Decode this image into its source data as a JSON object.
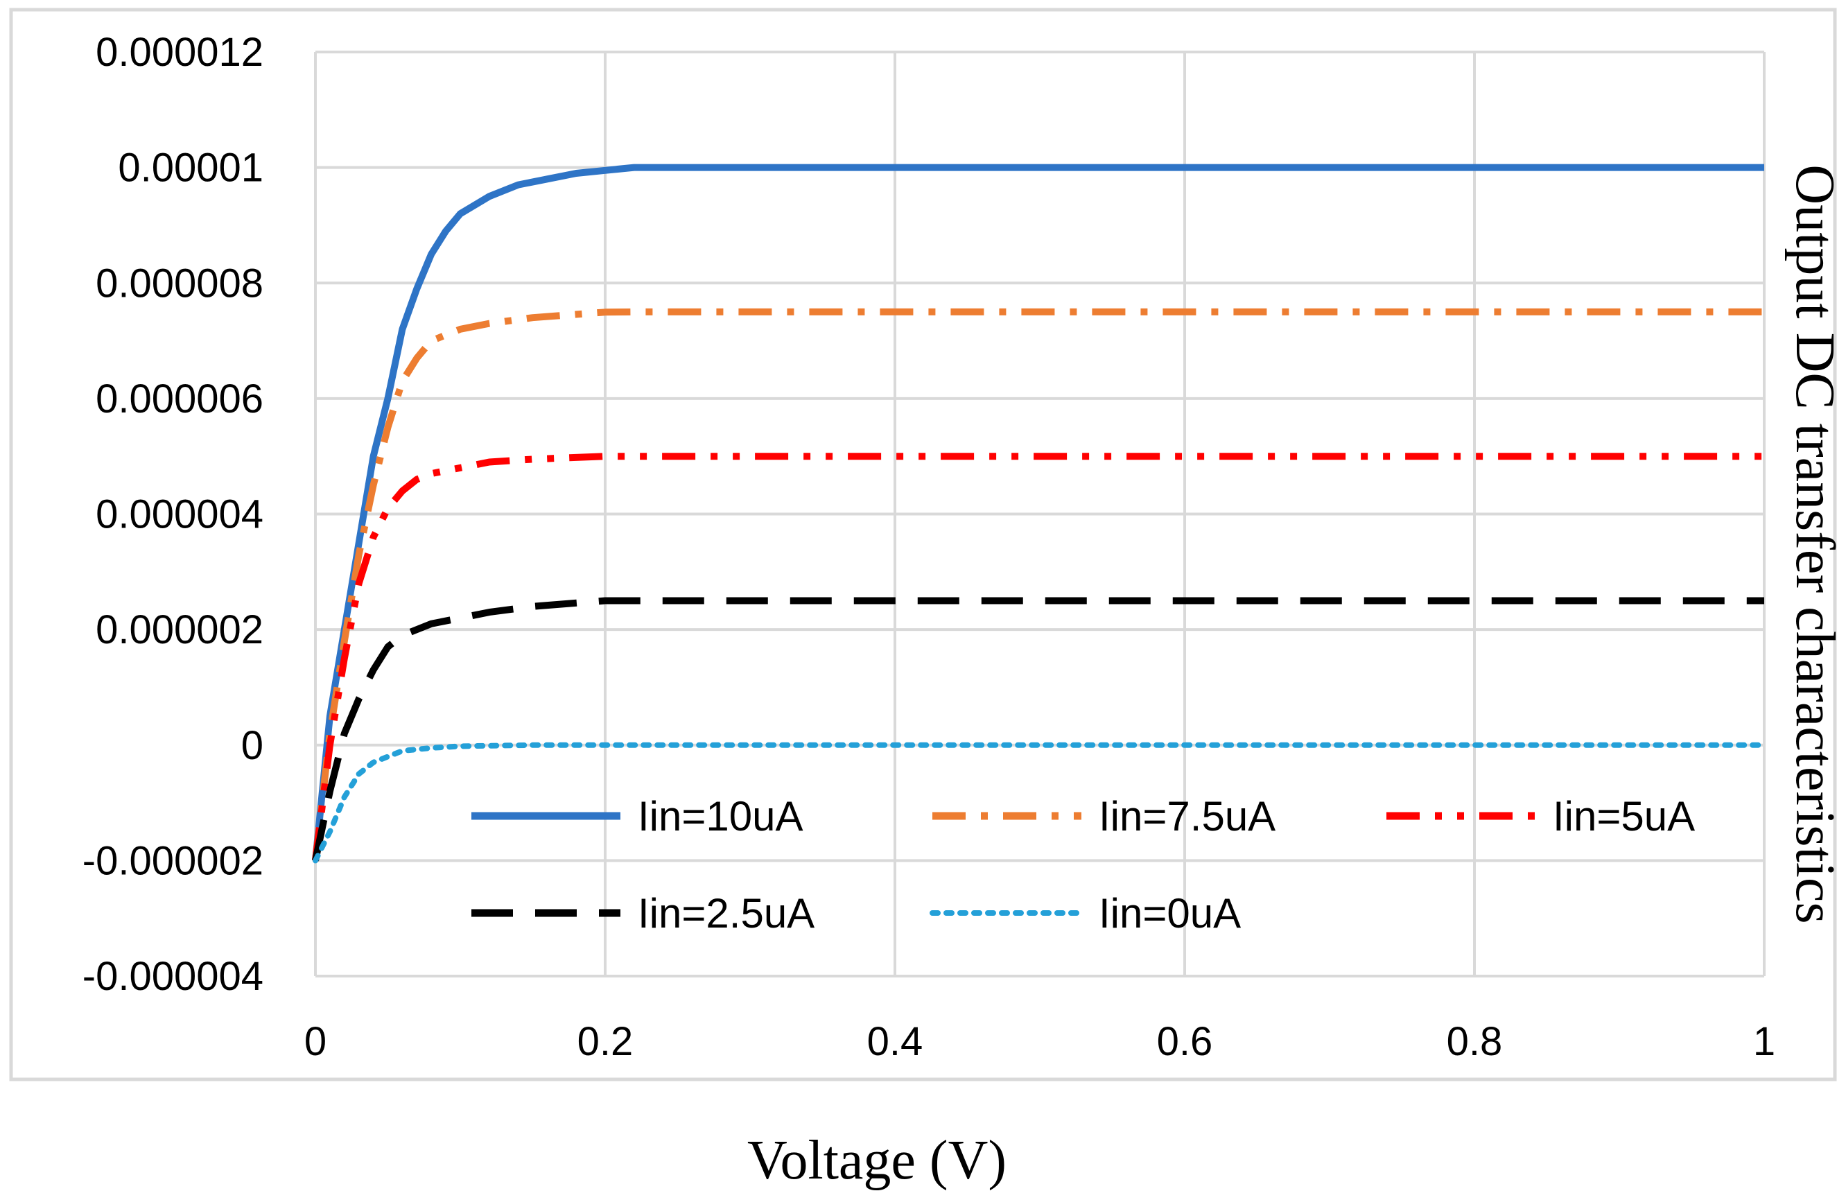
{
  "chart_data": {
    "type": "line",
    "title": "",
    "xlabel": "Voltage (V)",
    "ylabel": "Output DC transfer characteristics",
    "xlim": [
      0,
      1
    ],
    "ylim": [
      -4e-06,
      1.2e-05
    ],
    "grid": true,
    "legend_position": "bottom",
    "x_ticks": [
      0,
      0.2,
      0.4,
      0.6,
      0.8,
      1
    ],
    "x_tick_labels": [
      "0",
      "0.2",
      "0.4",
      "0.6",
      "0.8",
      "1"
    ],
    "y_ticks": [
      -4e-06,
      -2e-06,
      0,
      2e-06,
      4e-06,
      6e-06,
      8e-06,
      1e-05,
      1.2e-05
    ],
    "y_tick_labels": [
      "-0.000004",
      "-0.000002",
      "0",
      "0.000002",
      "0.000004",
      "0.000006",
      "0.000008",
      "0.00001",
      "0.000012"
    ],
    "series": [
      {
        "name": "Iin=10uA",
        "color": "#2e74c6",
        "dash": "solid",
        "points": [
          [
            0,
            -2e-06
          ],
          [
            0.01,
            5e-07
          ],
          [
            0.02,
            2e-06
          ],
          [
            0.03,
            3.5e-06
          ],
          [
            0.04,
            5e-06
          ],
          [
            0.05,
            6e-06
          ],
          [
            0.06,
            7.2e-06
          ],
          [
            0.07,
            7.9e-06
          ],
          [
            0.08,
            8.5e-06
          ],
          [
            0.09,
            8.9e-06
          ],
          [
            0.1,
            9.2e-06
          ],
          [
            0.12,
            9.5e-06
          ],
          [
            0.14,
            9.7e-06
          ],
          [
            0.16,
            9.8e-06
          ],
          [
            0.18,
            9.9e-06
          ],
          [
            0.2,
            9.95e-06
          ],
          [
            0.22,
            1e-05
          ],
          [
            1,
            1e-05
          ]
        ]
      },
      {
        "name": "Iin=7.5uA",
        "color": "#ed7d31",
        "dash": "dashdot",
        "points": [
          [
            0,
            -2e-06
          ],
          [
            0.01,
            2e-07
          ],
          [
            0.02,
            1.8e-06
          ],
          [
            0.03,
            3.3e-06
          ],
          [
            0.04,
            4.5e-06
          ],
          [
            0.05,
            5.5e-06
          ],
          [
            0.06,
            6.3e-06
          ],
          [
            0.07,
            6.7e-06
          ],
          [
            0.08,
            7e-06
          ],
          [
            0.1,
            7.2e-06
          ],
          [
            0.12,
            7.3e-06
          ],
          [
            0.15,
            7.4e-06
          ],
          [
            0.2,
            7.495e-06
          ],
          [
            0.22,
            7.5e-06
          ],
          [
            1,
            7.5e-06
          ]
        ]
      },
      {
        "name": "Iin=5uA",
        "color": "#ff0000",
        "dash": "dashdotdot",
        "points": [
          [
            0,
            -2e-06
          ],
          [
            0.01,
            0
          ],
          [
            0.02,
            1.5e-06
          ],
          [
            0.03,
            2.8e-06
          ],
          [
            0.04,
            3.6e-06
          ],
          [
            0.05,
            4.1e-06
          ],
          [
            0.06,
            4.4e-06
          ],
          [
            0.07,
            4.6e-06
          ],
          [
            0.08,
            4.7e-06
          ],
          [
            0.1,
            4.8e-06
          ],
          [
            0.12,
            4.9e-06
          ],
          [
            0.15,
            4.95e-06
          ],
          [
            0.2,
            5e-06
          ],
          [
            1,
            5e-06
          ]
        ]
      },
      {
        "name": "Iin=2.5uA",
        "color": "#000000",
        "dash": "dash",
        "points": [
          [
            0,
            -2e-06
          ],
          [
            0.01,
            -8e-07
          ],
          [
            0.02,
            2e-07
          ],
          [
            0.03,
            8e-07
          ],
          [
            0.04,
            1.3e-06
          ],
          [
            0.05,
            1.7e-06
          ],
          [
            0.06,
            1.9e-06
          ],
          [
            0.07,
            2e-06
          ],
          [
            0.08,
            2.1e-06
          ],
          [
            0.1,
            2.2e-06
          ],
          [
            0.12,
            2.3e-06
          ],
          [
            0.15,
            2.4e-06
          ],
          [
            0.2,
            2.5e-06
          ],
          [
            1,
            2.5e-06
          ]
        ]
      },
      {
        "name": "Iin=0uA",
        "color": "#24a0d8",
        "dash": "dot",
        "points": [
          [
            0,
            -2e-06
          ],
          [
            0.01,
            -1.5e-06
          ],
          [
            0.02,
            -9e-07
          ],
          [
            0.03,
            -5e-07
          ],
          [
            0.04,
            -3e-07
          ],
          [
            0.05,
            -2e-07
          ],
          [
            0.06,
            -1e-07
          ],
          [
            0.08,
            -5e-08
          ],
          [
            0.1,
            -2e-08
          ],
          [
            0.15,
            0
          ],
          [
            1,
            0
          ]
        ]
      }
    ]
  }
}
